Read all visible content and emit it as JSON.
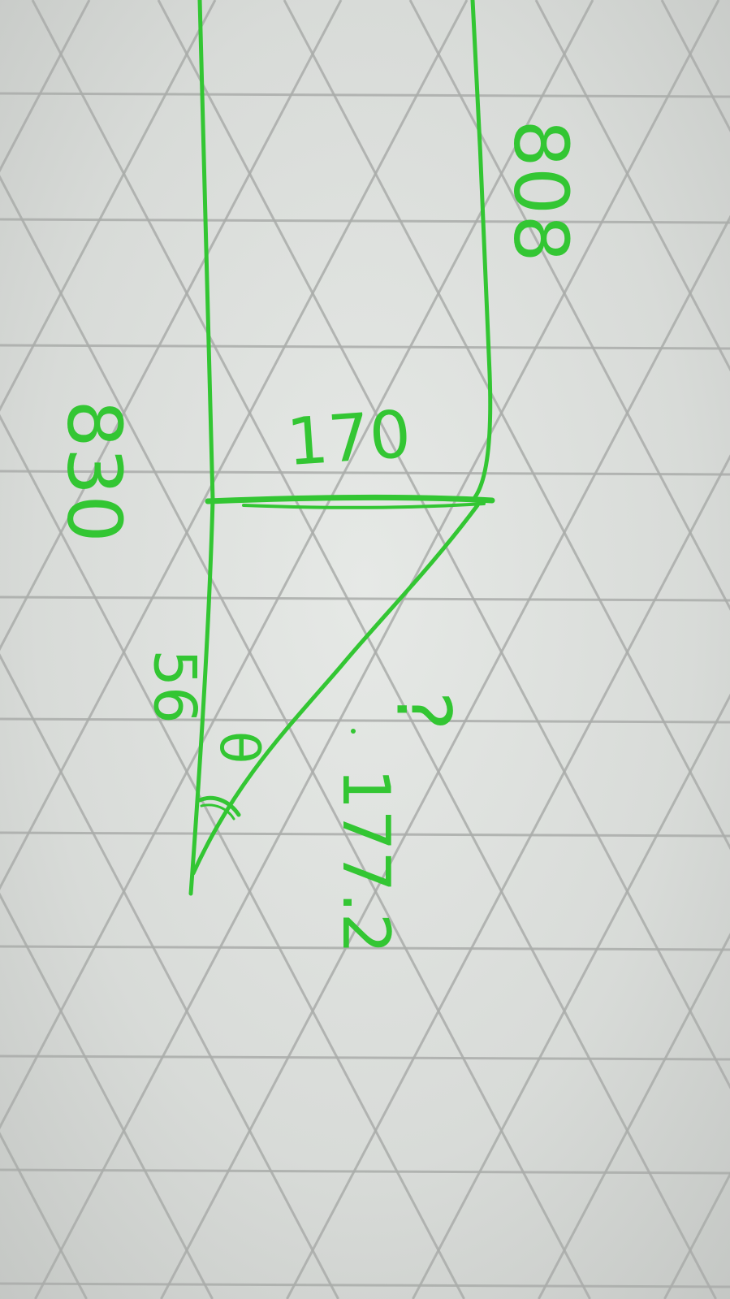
{
  "drawing": {
    "ink_color": "#33c633",
    "grid_line_color": "#a9aca9",
    "background_color": "#dcdfdc",
    "labels": {
      "left_height": "830",
      "right_height": "808",
      "crossbar_width": "170",
      "lower_segment": "56",
      "angle": "θ",
      "hypotenuse": "177.2",
      "unknown_side": "?"
    }
  }
}
